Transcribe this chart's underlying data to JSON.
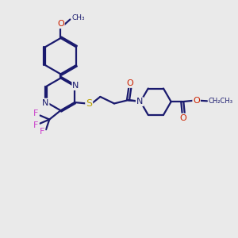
{
  "background_color": "#eaeaea",
  "bond_color": "#1a1a6e",
  "bond_width": 1.6,
  "figsize": [
    3.0,
    3.0
  ],
  "dpi": 100,
  "xlim": [
    0,
    10
  ],
  "ylim": [
    0,
    10
  ]
}
